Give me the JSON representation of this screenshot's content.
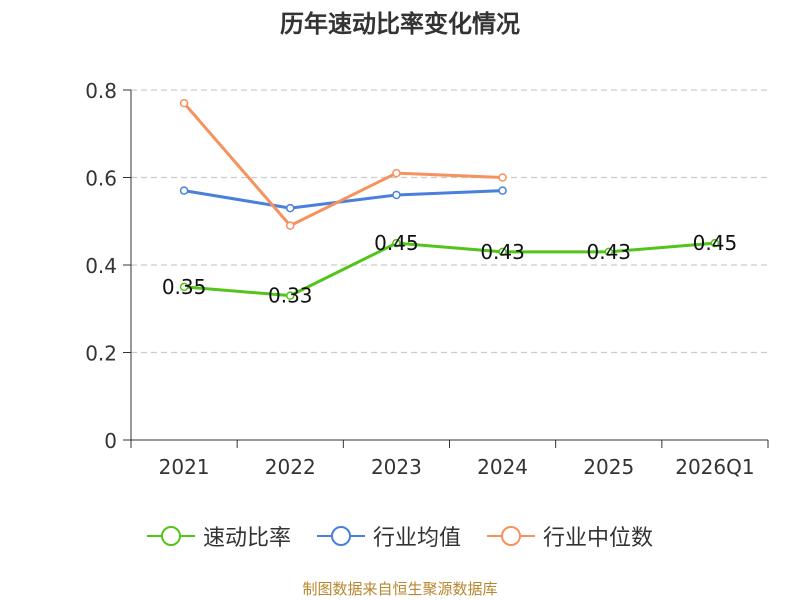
{
  "chart_data": {
    "type": "line",
    "title": "历年速动比率变化情况",
    "categories": [
      "2021",
      "2022",
      "2023",
      "2024",
      "2025",
      "2026Q1"
    ],
    "yticks": [
      "0",
      "0.2",
      "0.4",
      "0.6",
      "0.8"
    ],
    "ylim": [
      0,
      0.8
    ],
    "grid": true,
    "legend_position": "bottom",
    "series": [
      {
        "name": "速动比率",
        "color": "#52c41a",
        "values": [
          0.35,
          0.33,
          0.45,
          0.43,
          0.43,
          0.45
        ],
        "labels": [
          "0.35",
          "0.33",
          "0.45",
          "0.43",
          "0.43",
          "0.45"
        ]
      },
      {
        "name": "行业均值",
        "color": "#4a7fdb",
        "values": [
          0.57,
          0.53,
          0.56,
          0.57,
          null,
          null
        ]
      },
      {
        "name": "行业中位数",
        "color": "#f5925e",
        "values": [
          0.77,
          0.49,
          0.61,
          0.6,
          null,
          null
        ]
      }
    ]
  },
  "footer": {
    "source": "制图数据来自恒生聚源数据库"
  }
}
